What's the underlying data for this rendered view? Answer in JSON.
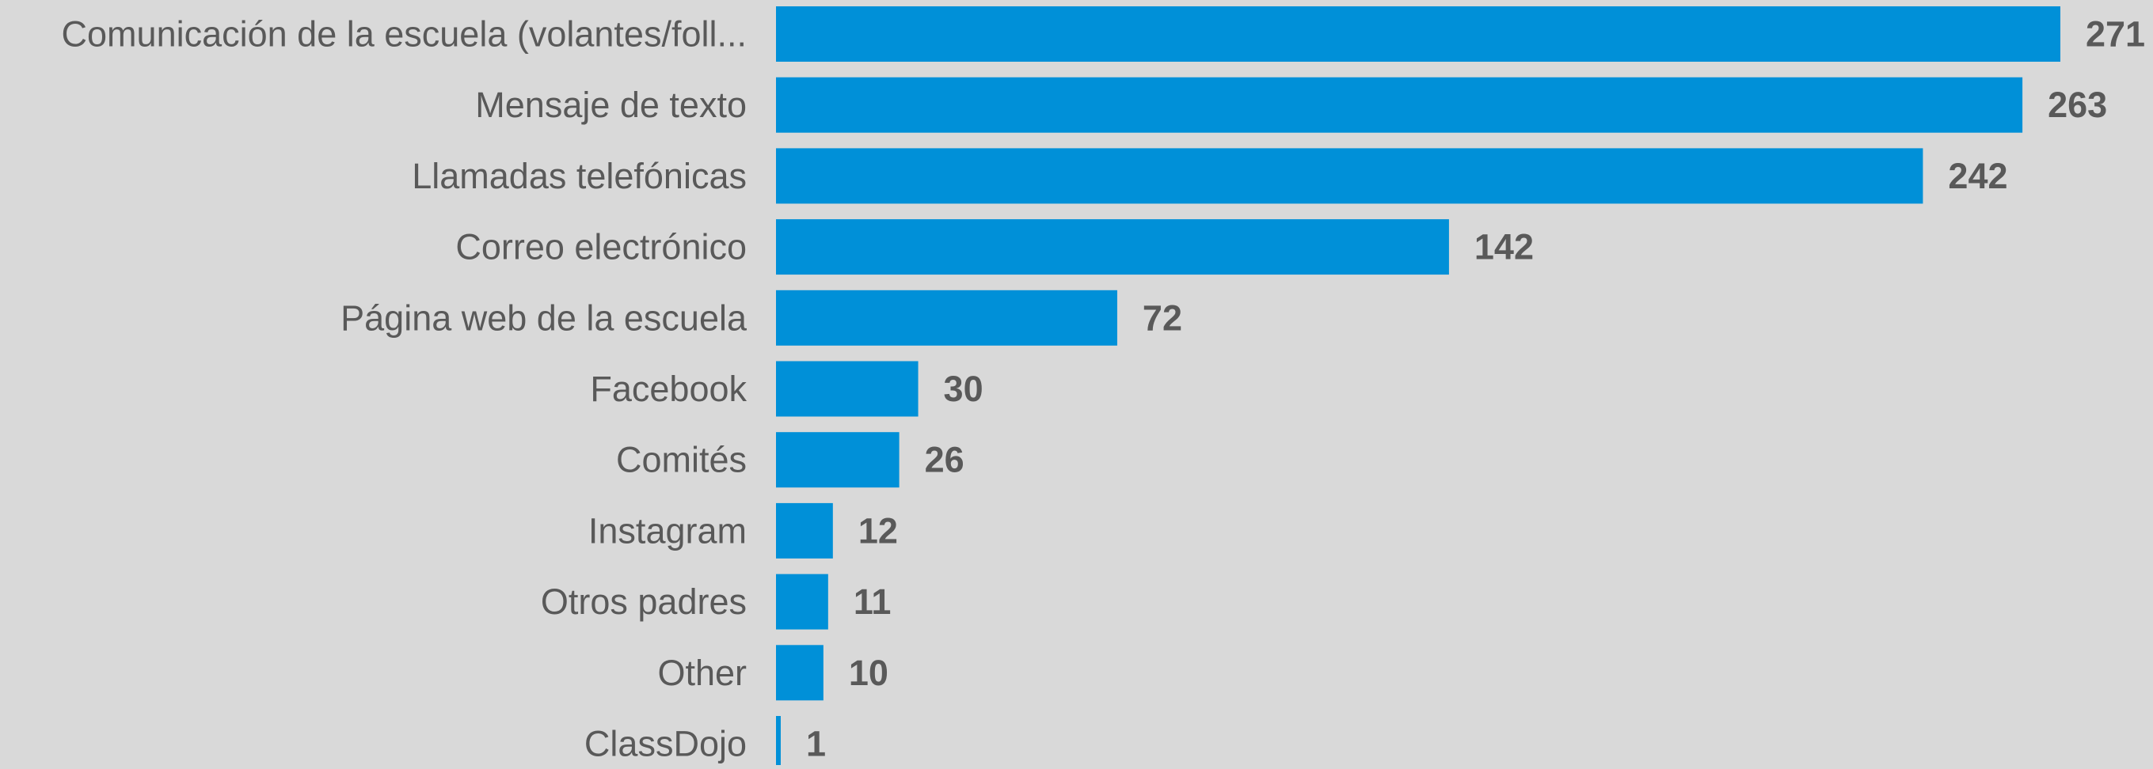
{
  "colors": {
    "background": "#d9d9d9",
    "bar": "#0090d8",
    "text": "#595959"
  },
  "chart_data": {
    "type": "bar",
    "orientation": "horizontal",
    "title": "",
    "xlabel": "",
    "ylabel": "",
    "grid": false,
    "legend": "none",
    "xlim": [
      0,
      271
    ],
    "categories": [
      "Comunicación de la escuela (volantes/foll...",
      "Mensaje de texto",
      "Llamadas telefónicas",
      "Correo electrónico",
      "Página web de la escuela",
      "Facebook",
      "Comités",
      "Instagram",
      "Otros padres",
      "Other",
      "ClassDojo"
    ],
    "values": [
      271,
      263,
      242,
      142,
      72,
      30,
      26,
      12,
      11,
      10,
      1
    ]
  }
}
